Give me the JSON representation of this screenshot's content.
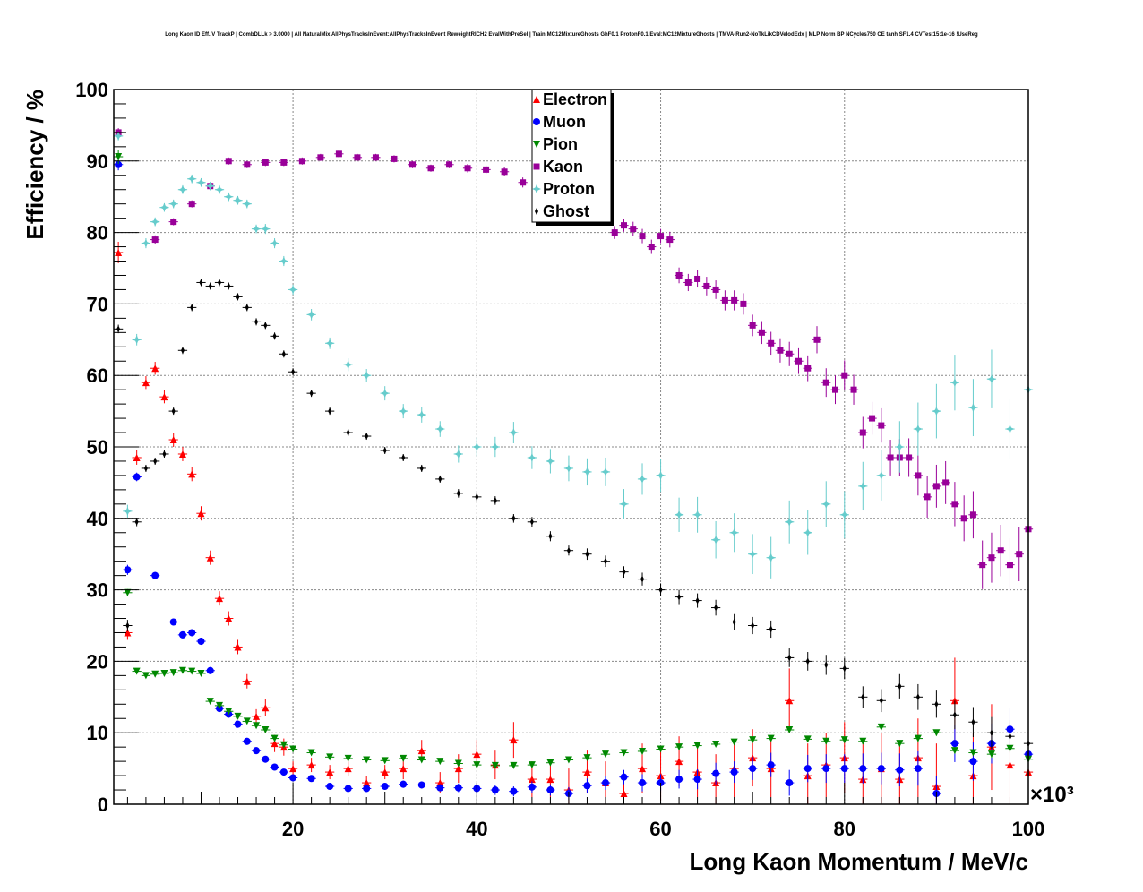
{
  "title": "Long Kaon ID Eff. V TrackP | CombDLLk > 3.0000 | All NaturalMix AllPhysTracksInEvent:AllPhysTracksInEvent ReweightRICH2 EvalWithPreSel | Train:MC12MixtureGhosts GhF0.1 ProtonF0.1 Eval:MC12MixtureGhosts | TMVA-Run2-NoTkLikCDVelodEdx | MLP Norm BP NCycles750 CE tanh SF1.4 CVTest15:1e-16 !UseReg",
  "chart_data": {
    "type": "scatter",
    "title": "Long Kaon ID Eff. V TrackP | CombDLLk > 3.0000 | All NaturalMix AllPhysTracksInEvent:AllPhysTracksInEvent ReweightRICH2 EvalWithPreSel | Train:MC12MixtureGhosts GhF0.1 ProtonF0.1 Eval:MC12MixtureGhosts | TMVA-Run2-NoTkLikCDVelodEdx | MLP Norm BP NCycles750 CE tanh SF1.4 CVTest15:1e-16 !UseReg",
    "xlabel": "Long Kaon Momentum / MeV/c",
    "ylabel": "Efficiency / %",
    "x_multiplier_label": "×10³",
    "xlim": [
      0.5,
      100
    ],
    "ylim": [
      0,
      100
    ],
    "xticks": [
      "20",
      "40",
      "60",
      "80",
      "100"
    ],
    "xtick_values": [
      20,
      40,
      60,
      80,
      100
    ],
    "yticks": [
      "0",
      "10",
      "20",
      "30",
      "40",
      "50",
      "60",
      "70",
      "80",
      "90",
      "100"
    ],
    "ytick_values": [
      0,
      10,
      20,
      30,
      40,
      50,
      60,
      70,
      80,
      90,
      100
    ],
    "grid": true,
    "legend_position": "top-center",
    "x_bin_halfwidth": 0.5,
    "x_unit_scale": 1000,
    "series": [
      {
        "name": "Electron",
        "color": "#ff0000",
        "marker": "triangle-up",
        "x": [
          1,
          2,
          3,
          4,
          5,
          6,
          7,
          8,
          9,
          10,
          11,
          12,
          13,
          14,
          15,
          16,
          17,
          18,
          19,
          20,
          22,
          24,
          26,
          28,
          30,
          32,
          34,
          36,
          38,
          40,
          42,
          44,
          46,
          48,
          50,
          52,
          54,
          56,
          58,
          60,
          62,
          64,
          66,
          68,
          70,
          72,
          74,
          76,
          78,
          80,
          82,
          84,
          86,
          88,
          90,
          92,
          94,
          96,
          98,
          100
        ],
        "y": [
          77.2,
          24,
          48.5,
          59,
          61,
          57,
          51,
          49,
          46.2,
          40.7,
          34.5,
          28.8,
          26,
          22,
          17.2,
          12.3,
          13.5,
          8.5,
          8,
          5,
          5.5,
          4.5,
          5,
          3,
          4.5,
          5,
          7.5,
          3,
          5,
          7,
          5.5,
          9,
          3.5,
          3.5,
          2,
          4.5,
          3,
          1.5,
          5,
          4,
          6,
          4.5,
          3,
          5,
          6.5,
          5,
          14.5,
          4,
          5.5,
          6.5,
          3.5,
          5,
          3.5,
          6.5,
          2.5,
          14.5,
          4,
          8,
          5.5,
          4.5
        ],
        "yerr": [
          1.5,
          1,
          1,
          0.9,
          0.9,
          0.9,
          1,
          1,
          1,
          1,
          1,
          1,
          1,
          1,
          1,
          1,
          1.2,
          1.2,
          1.2,
          1,
          1,
          1,
          1,
          1,
          1,
          1.5,
          1.5,
          1.5,
          2,
          2,
          2,
          2.5,
          2.5,
          2.5,
          3,
          3,
          3,
          3,
          3.5,
          3.5,
          3.5,
          3.5,
          4,
          4,
          4,
          4,
          4.5,
          4.5,
          4.5,
          5,
          5,
          5,
          5,
          5.5,
          6,
          6,
          6,
          6,
          6,
          6
        ]
      },
      {
        "name": "Muon",
        "color": "#0000ff",
        "marker": "circle",
        "x": [
          1,
          2,
          3,
          5,
          7,
          8,
          9,
          10,
          11,
          12,
          13,
          14,
          15,
          16,
          17,
          18,
          19,
          20,
          22,
          24,
          26,
          28,
          30,
          32,
          34,
          36,
          38,
          40,
          42,
          44,
          46,
          48,
          50,
          52,
          54,
          56,
          58,
          60,
          62,
          64,
          66,
          68,
          70,
          72,
          74,
          76,
          78,
          80,
          82,
          84,
          86,
          88,
          90,
          92,
          94,
          96,
          98,
          100
        ],
        "y": [
          89.5,
          32.8,
          45.8,
          32,
          25.5,
          23.7,
          24,
          22.8,
          18.7,
          13.4,
          12.6,
          11.2,
          8.8,
          7.5,
          6.3,
          5.2,
          4.5,
          3.7,
          3.6,
          2.5,
          2.2,
          2.2,
          2.5,
          2.8,
          2.7,
          2.3,
          2.3,
          2.2,
          2,
          1.8,
          2.4,
          2,
          1.5,
          2.6,
          3,
          3.8,
          3,
          3,
          3.5,
          3.5,
          4.3,
          4.5,
          5,
          5.5,
          3,
          5,
          5,
          5,
          5,
          5,
          4.8,
          5,
          1.5,
          8.5,
          6,
          8.5,
          10.5,
          7
        ],
        "yerr": [
          0.8,
          0.7,
          0.6,
          0.5,
          0.5,
          0.5,
          0.5,
          0.5,
          0.5,
          0.5,
          0.5,
          0.5,
          0.5,
          0.5,
          0.4,
          0.4,
          0.4,
          0.4,
          0.4,
          0.4,
          0.4,
          0.4,
          0.4,
          0.5,
          0.5,
          0.5,
          0.6,
          0.6,
          0.7,
          0.7,
          0.8,
          0.8,
          0.9,
          1,
          1,
          1,
          1.2,
          1.2,
          1.3,
          1.4,
          1.5,
          1.5,
          1.6,
          1.7,
          1.8,
          1.9,
          2,
          2,
          2.1,
          2.2,
          2.3,
          2.4,
          2.5,
          2.6,
          2.7,
          2.8,
          3,
          3
        ]
      },
      {
        "name": "Pion",
        "color": "#008800",
        "marker": "triangle-down",
        "x": [
          1,
          2,
          3,
          4,
          5,
          6,
          7,
          8,
          9,
          10,
          11,
          12,
          13,
          14,
          15,
          16,
          17,
          18,
          19,
          20,
          22,
          24,
          26,
          28,
          30,
          32,
          34,
          36,
          38,
          40,
          42,
          44,
          46,
          48,
          50,
          52,
          54,
          56,
          58,
          60,
          62,
          64,
          66,
          68,
          70,
          72,
          74,
          76,
          78,
          80,
          82,
          84,
          86,
          88,
          90,
          92,
          94,
          96,
          98,
          100
        ],
        "y": [
          90.6,
          29.6,
          18.6,
          18,
          18.2,
          18.3,
          18.4,
          18.7,
          18.6,
          18.3,
          14.4,
          13.8,
          13,
          12.3,
          11.6,
          11,
          10.4,
          9.2,
          8.3,
          7.7,
          7.2,
          6.6,
          6.4,
          6.2,
          6.1,
          6.4,
          6.2,
          6,
          5.7,
          5.5,
          5.4,
          5.4,
          5.5,
          5.8,
          6.2,
          6.5,
          7,
          7.2,
          7.4,
          7.7,
          8,
          8.2,
          8.4,
          8.7,
          9,
          9.2,
          10.4,
          9.1,
          8.8,
          9,
          8.8,
          10.8,
          8.5,
          9.2,
          10,
          7.5,
          7.2,
          7,
          7.8,
          6.3
        ],
        "yerr": [
          1,
          0.5,
          0.3,
          0.3,
          0.3,
          0.3,
          0.3,
          0.3,
          0.3,
          0.3,
          0.3,
          0.3,
          0.3,
          0.3,
          0.3,
          0.3,
          0.3,
          0.3,
          0.3,
          0.3,
          0.3,
          0.3,
          0.3,
          0.3,
          0.3,
          0.3,
          0.3,
          0.3,
          0.3,
          0.3,
          0.3,
          0.3,
          0.3,
          0.3,
          0.3,
          0.3,
          0.3,
          0.3,
          0.3,
          0.3,
          0.3,
          0.3,
          0.3,
          0.3,
          0.3,
          0.3,
          0.3,
          0.3,
          0.3,
          0.4,
          0.4,
          0.4,
          0.4,
          0.4,
          0.4,
          0.4,
          0.4,
          0.5,
          0.5,
          0.5
        ]
      },
      {
        "name": "Kaon",
        "color": "#990099",
        "marker": "square",
        "x": [
          1,
          5,
          7,
          9,
          11,
          13,
          15,
          17,
          19,
          21,
          23,
          25,
          27,
          29,
          31,
          33,
          35,
          37,
          39,
          41,
          43,
          45,
          47,
          49,
          51,
          53,
          55,
          56,
          57,
          58,
          59,
          60,
          61,
          62,
          63,
          64,
          65,
          66,
          67,
          68,
          69,
          70,
          71,
          72,
          73,
          74,
          75,
          76,
          77,
          78,
          79,
          80,
          81,
          82,
          83,
          84,
          85,
          86,
          87,
          88,
          89,
          90,
          91,
          92,
          93,
          94,
          95,
          96,
          97,
          98,
          99,
          100
        ],
        "y": [
          94,
          79,
          81.5,
          84,
          86.5,
          90,
          89.5,
          89.8,
          89.8,
          90,
          90.5,
          91,
          90.5,
          90.5,
          90.3,
          89.5,
          89,
          89.5,
          89,
          88.8,
          88.5,
          87,
          86.5,
          86,
          85.5,
          84,
          80,
          81,
          80.5,
          79.5,
          78,
          79.5,
          79,
          74,
          73,
          73.5,
          72.5,
          72,
          70.5,
          70.5,
          70,
          67,
          66,
          64.5,
          63.5,
          63,
          62,
          61,
          65,
          59,
          58,
          60,
          58,
          52,
          54,
          53,
          48.5,
          48.5,
          48.5,
          46,
          43,
          44.5,
          45,
          42,
          40,
          40.5,
          33.5,
          34.5,
          35.5,
          33.5,
          35,
          38.5
        ],
        "yerr": [
          0.6,
          0.6,
          0.5,
          0.5,
          0.5,
          0.5,
          0.5,
          0.5,
          0.5,
          0.5,
          0.5,
          0.5,
          0.5,
          0.5,
          0.5,
          0.5,
          0.5,
          0.5,
          0.6,
          0.6,
          0.6,
          0.7,
          0.7,
          0.7,
          0.8,
          0.8,
          0.9,
          0.9,
          1,
          1,
          1,
          1,
          1.1,
          1.1,
          1.2,
          1.2,
          1.3,
          1.3,
          1.4,
          1.4,
          1.5,
          1.5,
          1.6,
          1.6,
          1.7,
          1.7,
          1.8,
          1.8,
          1.9,
          2,
          2,
          2.1,
          2.1,
          2.2,
          2.3,
          2.4,
          2.5,
          2.6,
          2.7,
          2.8,
          2.9,
          3,
          3,
          3.1,
          3.2,
          3.3,
          3.4,
          3.5,
          3.6,
          3.7,
          3.8,
          4
        ]
      },
      {
        "name": "Proton",
        "color": "#66cccc",
        "marker": "star",
        "x": [
          1,
          2,
          3,
          4,
          5,
          6,
          7,
          8,
          9,
          10,
          11,
          12,
          13,
          14,
          15,
          16,
          17,
          18,
          19,
          20,
          22,
          24,
          26,
          28,
          30,
          32,
          34,
          36,
          38,
          40,
          42,
          44,
          46,
          48,
          50,
          52,
          54,
          56,
          58,
          60,
          62,
          64,
          66,
          68,
          70,
          72,
          74,
          76,
          78,
          80,
          82,
          84,
          86,
          88,
          90,
          92,
          94,
          96,
          98,
          100
        ],
        "y": [
          93.5,
          41,
          65,
          78.5,
          81.5,
          83.5,
          84,
          86,
          87.5,
          87,
          86.5,
          86,
          85,
          84.5,
          84,
          80.5,
          80.5,
          78.5,
          76,
          72,
          68.5,
          64.5,
          61.5,
          60,
          57.5,
          55,
          54.5,
          52.5,
          49,
          50,
          50,
          52,
          48.5,
          48,
          47,
          46.5,
          46.5,
          42,
          45.5,
          46,
          40.5,
          40.5,
          37,
          38,
          35,
          34.5,
          39.5,
          38,
          42,
          40.5,
          44.5,
          46,
          50,
          52.5,
          55,
          59,
          55.5,
          59.5,
          52.5,
          58
        ],
        "yerr": [
          0.6,
          0.9,
          0.8,
          0.7,
          0.6,
          0.6,
          0.6,
          0.6,
          0.6,
          0.6,
          0.6,
          0.6,
          0.6,
          0.6,
          0.6,
          0.6,
          0.7,
          0.7,
          0.7,
          0.7,
          0.8,
          0.8,
          0.9,
          0.9,
          1,
          1,
          1.1,
          1.1,
          1.2,
          1.3,
          1.4,
          1.5,
          1.6,
          1.7,
          1.8,
          1.9,
          2,
          2.1,
          2.2,
          2.3,
          2.4,
          2.5,
          2.6,
          2.7,
          2.8,
          2.9,
          3,
          3.1,
          3.2,
          3.3,
          3.4,
          3.5,
          3.6,
          3.7,
          3.8,
          3.9,
          4,
          4.1,
          4.2,
          4.3
        ]
      },
      {
        "name": "Ghost",
        "color": "#000000",
        "marker": "cross",
        "x": [
          1,
          2,
          3,
          4,
          5,
          6,
          7,
          8,
          9,
          10,
          11,
          12,
          13,
          14,
          15,
          16,
          17,
          18,
          19,
          20,
          22,
          24,
          26,
          28,
          30,
          32,
          34,
          36,
          38,
          40,
          42,
          44,
          46,
          48,
          50,
          52,
          54,
          56,
          58,
          60,
          62,
          64,
          66,
          68,
          70,
          72,
          74,
          76,
          78,
          80,
          82,
          84,
          86,
          88,
          90,
          92,
          94,
          96,
          98,
          100
        ],
        "y": [
          66.5,
          25,
          39.5,
          47,
          48,
          49,
          55,
          63.5,
          69.5,
          73,
          72.5,
          73,
          72.5,
          71,
          69.5,
          67.5,
          67,
          65.5,
          63,
          60.5,
          57.5,
          55,
          52,
          51.5,
          49.5,
          48.5,
          47,
          45.5,
          43.5,
          43,
          42.5,
          40,
          39.5,
          37.5,
          35.5,
          35,
          34,
          32.5,
          31.5,
          30,
          29,
          28.5,
          27.5,
          25.5,
          25,
          24.5,
          20.5,
          20,
          19.5,
          19,
          15,
          14.5,
          16.5,
          15,
          14,
          12.5,
          11.5,
          10,
          9.5,
          8.5
        ],
        "yerr": [
          0.6,
          0.8,
          0.6,
          0.5,
          0.5,
          0.5,
          0.5,
          0.5,
          0.5,
          0.5,
          0.5,
          0.5,
          0.5,
          0.5,
          0.5,
          0.5,
          0.5,
          0.5,
          0.5,
          0.5,
          0.5,
          0.5,
          0.5,
          0.5,
          0.5,
          0.5,
          0.5,
          0.5,
          0.6,
          0.6,
          0.6,
          0.6,
          0.7,
          0.7,
          0.7,
          0.8,
          0.8,
          0.8,
          0.9,
          0.9,
          1,
          1,
          1.1,
          1.1,
          1.2,
          1.2,
          1.3,
          1.3,
          1.4,
          1.5,
          1.5,
          1.6,
          1.7,
          1.8,
          1.9,
          2,
          2.1,
          2.2,
          2.3,
          2.4
        ]
      }
    ]
  }
}
